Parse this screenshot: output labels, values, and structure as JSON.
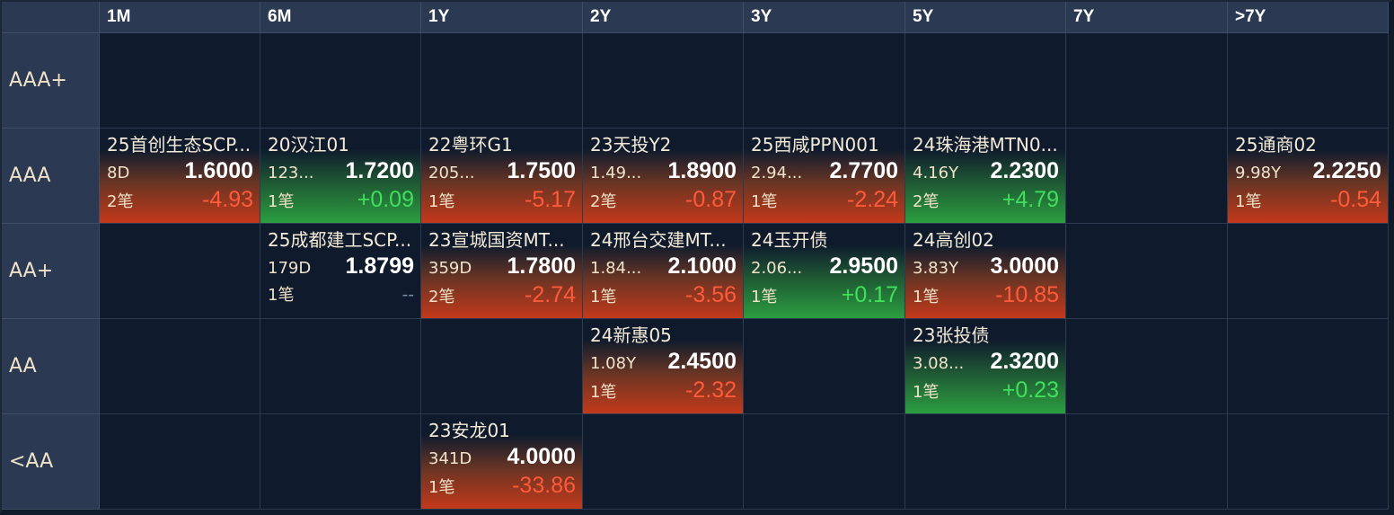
{
  "columns": [
    "1M",
    "6M",
    "1Y",
    "2Y",
    "3Y",
    "5Y",
    "7Y",
    ">7Y"
  ],
  "rows": [
    "AAA+",
    "AAA",
    "AA+",
    "AA",
    "<AA"
  ],
  "colors": {
    "header_bg": "#2b3a52",
    "cell_bg": "#0f1b2d",
    "down": "#ff5a3a",
    "up": "#3fe05a"
  },
  "cells": {
    "aaa_1m": {
      "name": "25首创生态SCP...",
      "term": "8D",
      "yield": "1.6000",
      "count": "2笔",
      "change": "-4.93"
    },
    "aaa_6m": {
      "name": "20汉江01",
      "term": "123...",
      "yield": "1.7200",
      "count": "1笔",
      "change": "+0.09"
    },
    "aaa_1y": {
      "name": "22粤环G1",
      "term": "205...",
      "yield": "1.7500",
      "count": "1笔",
      "change": "-5.17"
    },
    "aaa_2y": {
      "name": "23天投Y2",
      "term": "1.49...",
      "yield": "1.8900",
      "count": "2笔",
      "change": "-0.87"
    },
    "aaa_3y": {
      "name": "25西咸PPN001",
      "term": "2.94...",
      "yield": "2.7700",
      "count": "1笔",
      "change": "-2.24"
    },
    "aaa_5y": {
      "name": "24珠海港MTN0...",
      "term": "4.16Y",
      "yield": "2.2300",
      "count": "2笔",
      "change": "+4.79"
    },
    "aaa_gt7y": {
      "name": "25通商02",
      "term": "9.98Y",
      "yield": "2.2250",
      "count": "1笔",
      "change": "-0.54"
    },
    "aap_6m": {
      "name": "25成都建工SCP...",
      "term": "179D",
      "yield": "1.8799",
      "count": "1笔",
      "change": "--"
    },
    "aap_1y": {
      "name": "23宣城国资MT...",
      "term": "359D",
      "yield": "1.7800",
      "count": "2笔",
      "change": "-2.74"
    },
    "aap_2y": {
      "name": "24邢台交建MT...",
      "term": "1.84...",
      "yield": "2.1000",
      "count": "1笔",
      "change": "-3.56"
    },
    "aap_3y": {
      "name": "24玉开债",
      "term": "2.06...",
      "yield": "2.9500",
      "count": "1笔",
      "change": "+0.17"
    },
    "aap_5y": {
      "name": "24高创02",
      "term": "3.83Y",
      "yield": "3.0000",
      "count": "1笔",
      "change": "-10.85"
    },
    "aa_2y": {
      "name": "24新惠05",
      "term": "1.08Y",
      "yield": "2.4500",
      "count": "1笔",
      "change": "-2.32"
    },
    "aa_5y": {
      "name": "23张投债",
      "term": "3.08...",
      "yield": "2.3200",
      "count": "1笔",
      "change": "+0.23"
    },
    "laa_1y": {
      "name": "23安龙01",
      "term": "341D",
      "yield": "4.0000",
      "count": "1笔",
      "change": "-33.86"
    }
  }
}
